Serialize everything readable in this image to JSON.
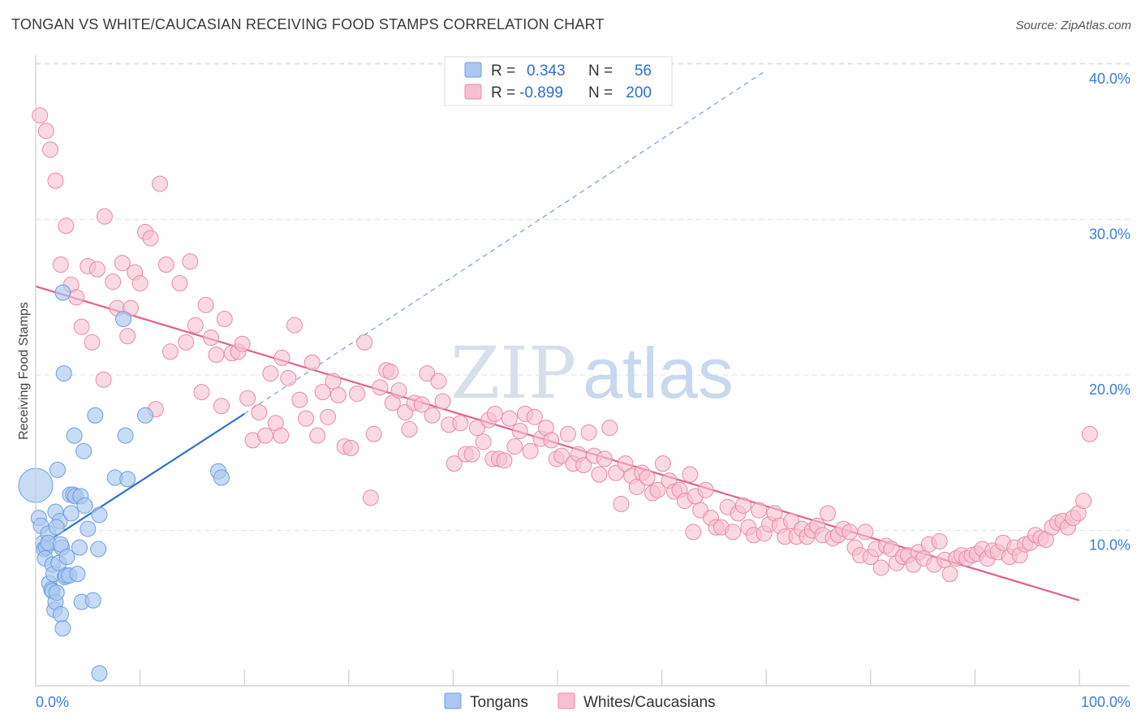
{
  "header": {
    "title": "TONGAN VS WHITE/CAUCASIAN RECEIVING FOOD STAMPS CORRELATION CHART",
    "source": "Source: ZipAtlas.com"
  },
  "legend_box": {
    "rows": [
      {
        "r_label": "R =",
        "r_value": "0.343",
        "n_label": "N =",
        "n_value": "56",
        "color": "#aac8f0"
      },
      {
        "r_label": "R =",
        "r_value": "-0.899",
        "n_label": "N =",
        "n_value": "200",
        "color": "#f5b8cb"
      }
    ]
  },
  "watermark": {
    "zip": "ZIP",
    "atlas": "atlas"
  },
  "colors": {
    "blue_fill": "#aac8f0",
    "blue_stroke": "#6d9fe0",
    "blue_line": "#2e72d2",
    "pink_fill": "#f7c0d0",
    "pink_stroke": "#e98aa8",
    "pink_line": "#e0608c",
    "grid": "#dde3ea",
    "tick_text": "#3b7dd8"
  },
  "chart_data": {
    "type": "scatter",
    "title": "TONGAN VS WHITE/CAUCASIAN RECEIVING FOOD STAMPS CORRELATION CHART",
    "ylabel": "Receiving Food Stamps",
    "xlabel": "",
    "xlim": [
      0,
      100
    ],
    "ylim": [
      0,
      40
    ],
    "x_tick_labels": [
      "0.0%",
      "100.0%"
    ],
    "y_tick_labels": [
      "10.0%",
      "20.0%",
      "30.0%",
      "40.0%"
    ],
    "y_ticks": [
      10,
      20,
      30,
      40
    ],
    "grid": true,
    "legend_position": "bottom",
    "series": [
      {
        "name": "Tongans",
        "r": 0.343,
        "n": 56,
        "trend": {
          "x0": 0,
          "y0": 8.8,
          "x1": 20,
          "y1": 17.5,
          "dashed_to_x": 70,
          "dashed_to_y": 39.6
        },
        "points": [
          [
            0,
            12.9
          ],
          [
            0.3,
            10.8
          ],
          [
            0.5,
            10.3
          ],
          [
            0.7,
            9.2
          ],
          [
            0.8,
            8.8
          ],
          [
            1.0,
            8.9
          ],
          [
            0.9,
            8.2
          ],
          [
            1.2,
            9.8
          ],
          [
            1.2,
            9.2
          ],
          [
            1.3,
            6.6
          ],
          [
            1.5,
            6.2
          ],
          [
            1.6,
            7.8
          ],
          [
            1.6,
            6.1
          ],
          [
            1.8,
            4.9
          ],
          [
            1.7,
            7.2
          ],
          [
            1.9,
            11.2
          ],
          [
            1.9,
            5.4
          ],
          [
            2.0,
            6.0
          ],
          [
            2.1,
            13.9
          ],
          [
            2.2,
            7.9
          ],
          [
            2.3,
            10.6
          ],
          [
            2.4,
            4.6
          ],
          [
            2.5,
            8.9
          ],
          [
            2.4,
            9.1
          ],
          [
            2.6,
            3.7
          ],
          [
            2.6,
            25.3
          ],
          [
            2.7,
            20.1
          ],
          [
            2.8,
            7.0
          ],
          [
            2.9,
            7.1
          ],
          [
            3.0,
            8.3
          ],
          [
            3.2,
            7.1
          ],
          [
            3.3,
            12.3
          ],
          [
            3.4,
            11.1
          ],
          [
            3.6,
            12.3
          ],
          [
            3.7,
            16.1
          ],
          [
            3.8,
            12.2
          ],
          [
            4.0,
            7.2
          ],
          [
            4.2,
            8.9
          ],
          [
            4.3,
            12.2
          ],
          [
            4.4,
            5.4
          ],
          [
            4.6,
            15.1
          ],
          [
            4.7,
            11.6
          ],
          [
            5.0,
            10.1
          ],
          [
            5.5,
            5.5
          ],
          [
            5.7,
            17.4
          ],
          [
            6.0,
            8.8
          ],
          [
            6.1,
            11.0
          ],
          [
            6.1,
            0.8
          ],
          [
            7.6,
            13.4
          ],
          [
            8.4,
            23.6
          ],
          [
            8.6,
            16.1
          ],
          [
            8.8,
            13.3
          ],
          [
            10.5,
            17.4
          ],
          [
            17.5,
            13.8
          ],
          [
            17.8,
            13.4
          ],
          [
            2.0,
            10.2
          ]
        ]
      },
      {
        "name": "Whites/Caucasians",
        "r": -0.899,
        "n": 200,
        "trend": {
          "x0": 0,
          "y0": 25.7,
          "x1": 100,
          "y1": 5.5
        },
        "points": [
          [
            0.4,
            36.7
          ],
          [
            1.0,
            35.7
          ],
          [
            1.4,
            34.5
          ],
          [
            1.9,
            32.5
          ],
          [
            2.4,
            27.1
          ],
          [
            2.9,
            29.6
          ],
          [
            3.4,
            25.8
          ],
          [
            3.9,
            25.0
          ],
          [
            4.4,
            23.1
          ],
          [
            5.0,
            27.0
          ],
          [
            5.4,
            22.1
          ],
          [
            5.9,
            26.8
          ],
          [
            6.5,
            19.7
          ],
          [
            6.6,
            30.2
          ],
          [
            7.4,
            26.0
          ],
          [
            7.8,
            24.3
          ],
          [
            8.3,
            27.2
          ],
          [
            8.8,
            22.5
          ],
          [
            9.1,
            24.3
          ],
          [
            9.5,
            26.6
          ],
          [
            10.0,
            25.9
          ],
          [
            10.5,
            29.2
          ],
          [
            11.0,
            28.8
          ],
          [
            11.5,
            17.8
          ],
          [
            11.9,
            32.3
          ],
          [
            12.9,
            21.5
          ],
          [
            12.5,
            27.1
          ],
          [
            13.8,
            25.9
          ],
          [
            14.4,
            22.1
          ],
          [
            14.8,
            27.3
          ],
          [
            15.3,
            23.2
          ],
          [
            15.9,
            18.9
          ],
          [
            16.3,
            24.5
          ],
          [
            16.8,
            22.4
          ],
          [
            17.3,
            21.3
          ],
          [
            17.8,
            18.0
          ],
          [
            18.1,
            23.6
          ],
          [
            18.8,
            21.4
          ],
          [
            19.4,
            21.5
          ],
          [
            19.8,
            22.0
          ],
          [
            20.3,
            18.5
          ],
          [
            20.8,
            15.8
          ],
          [
            21.4,
            17.6
          ],
          [
            22.0,
            16.1
          ],
          [
            22.5,
            20.1
          ],
          [
            23.0,
            16.9
          ],
          [
            23.6,
            21.1
          ],
          [
            24.2,
            19.8
          ],
          [
            24.8,
            23.2
          ],
          [
            25.3,
            18.4
          ],
          [
            25.9,
            17.2
          ],
          [
            26.5,
            20.8
          ],
          [
            27.0,
            16.1
          ],
          [
            27.5,
            18.9
          ],
          [
            28.0,
            17.3
          ],
          [
            28.5,
            19.6
          ],
          [
            29.0,
            18.7
          ],
          [
            29.6,
            15.4
          ],
          [
            30.2,
            15.3
          ],
          [
            30.8,
            18.8
          ],
          [
            31.5,
            22.1
          ],
          [
            32.1,
            12.1
          ],
          [
            32.4,
            16.2
          ],
          [
            33.0,
            19.2
          ],
          [
            33.6,
            20.3
          ],
          [
            34.2,
            18.2
          ],
          [
            34.8,
            19.0
          ],
          [
            35.4,
            17.6
          ],
          [
            35.8,
            16.5
          ],
          [
            36.3,
            18.2
          ],
          [
            37.0,
            18.1
          ],
          [
            37.5,
            20.1
          ],
          [
            38.0,
            17.4
          ],
          [
            38.6,
            19.6
          ],
          [
            39.0,
            18.3
          ],
          [
            39.6,
            16.8
          ],
          [
            40.1,
            14.3
          ],
          [
            40.7,
            16.9
          ],
          [
            41.2,
            14.9
          ],
          [
            41.8,
            14.9
          ],
          [
            42.3,
            16.6
          ],
          [
            42.9,
            15.7
          ],
          [
            43.4,
            17.1
          ],
          [
            43.8,
            14.6
          ],
          [
            44.4,
            14.6
          ],
          [
            44.9,
            14.5
          ],
          [
            45.4,
            17.2
          ],
          [
            45.9,
            15.4
          ],
          [
            46.4,
            16.4
          ],
          [
            46.9,
            17.5
          ],
          [
            47.4,
            15.1
          ],
          [
            47.8,
            17.3
          ],
          [
            48.4,
            15.9
          ],
          [
            48.9,
            16.6
          ],
          [
            49.4,
            15.8
          ],
          [
            49.9,
            14.6
          ],
          [
            50.4,
            14.8
          ],
          [
            51.0,
            16.2
          ],
          [
            51.5,
            14.3
          ],
          [
            52.0,
            14.9
          ],
          [
            52.5,
            14.2
          ],
          [
            53.0,
            16.3
          ],
          [
            53.5,
            14.8
          ],
          [
            54.0,
            13.6
          ],
          [
            54.5,
            14.6
          ],
          [
            55.0,
            16.6
          ],
          [
            55.6,
            13.7
          ],
          [
            56.1,
            11.7
          ],
          [
            56.5,
            14.3
          ],
          [
            57.1,
            13.5
          ],
          [
            57.6,
            12.8
          ],
          [
            58.1,
            13.7
          ],
          [
            58.6,
            13.4
          ],
          [
            59.1,
            12.4
          ],
          [
            59.6,
            12.6
          ],
          [
            60.1,
            14.3
          ],
          [
            60.7,
            13.2
          ],
          [
            61.2,
            12.5
          ],
          [
            61.7,
            12.6
          ],
          [
            62.2,
            11.9
          ],
          [
            62.7,
            13.6
          ],
          [
            63.2,
            12.2
          ],
          [
            63.7,
            11.3
          ],
          [
            64.2,
            12.6
          ],
          [
            64.7,
            10.8
          ],
          [
            65.2,
            10.2
          ],
          [
            65.7,
            10.2
          ],
          [
            66.3,
            11.5
          ],
          [
            66.8,
            9.9
          ],
          [
            67.3,
            11.1
          ],
          [
            67.8,
            11.6
          ],
          [
            68.3,
            10.2
          ],
          [
            68.8,
            9.7
          ],
          [
            69.3,
            11.3
          ],
          [
            69.8,
            9.8
          ],
          [
            70.3,
            10.4
          ],
          [
            70.8,
            11.1
          ],
          [
            71.3,
            10.3
          ],
          [
            71.8,
            9.6
          ],
          [
            72.4,
            10.6
          ],
          [
            72.9,
            9.6
          ],
          [
            73.4,
            10.1
          ],
          [
            73.9,
            9.6
          ],
          [
            74.4,
            10.0
          ],
          [
            74.9,
            10.3
          ],
          [
            75.4,
            9.7
          ],
          [
            75.9,
            11.1
          ],
          [
            76.4,
            9.5
          ],
          [
            76.9,
            9.7
          ],
          [
            77.4,
            10.1
          ],
          [
            78.0,
            9.9
          ],
          [
            78.5,
            8.9
          ],
          [
            79.0,
            8.4
          ],
          [
            79.5,
            9.9
          ],
          [
            80.0,
            8.3
          ],
          [
            80.5,
            8.8
          ],
          [
            81.0,
            7.6
          ],
          [
            81.5,
            9.0
          ],
          [
            82.0,
            8.8
          ],
          [
            82.5,
            7.9
          ],
          [
            83.1,
            8.3
          ],
          [
            83.6,
            8.4
          ],
          [
            84.1,
            7.8
          ],
          [
            84.6,
            8.6
          ],
          [
            85.1,
            8.2
          ],
          [
            85.6,
            9.1
          ],
          [
            86.1,
            7.8
          ],
          [
            86.6,
            9.3
          ],
          [
            87.1,
            8.1
          ],
          [
            87.6,
            7.2
          ],
          [
            88.2,
            8.2
          ],
          [
            88.7,
            8.4
          ],
          [
            89.2,
            8.2
          ],
          [
            89.7,
            8.4
          ],
          [
            90.2,
            8.5
          ],
          [
            90.7,
            8.8
          ],
          [
            91.2,
            8.2
          ],
          [
            91.7,
            8.7
          ],
          [
            92.2,
            8.6
          ],
          [
            92.7,
            9.2
          ],
          [
            93.3,
            8.3
          ],
          [
            93.8,
            8.9
          ],
          [
            94.3,
            8.4
          ],
          [
            94.8,
            9.1
          ],
          [
            95.3,
            9.2
          ],
          [
            95.8,
            9.7
          ],
          [
            96.3,
            9.5
          ],
          [
            96.8,
            9.4
          ],
          [
            97.4,
            10.2
          ],
          [
            97.9,
            10.5
          ],
          [
            98.4,
            10.6
          ],
          [
            98.9,
            10.2
          ],
          [
            99.4,
            10.8
          ],
          [
            99.9,
            11.1
          ],
          [
            100.4,
            11.9
          ],
          [
            101.0,
            16.2
          ],
          [
            34.0,
            20.2
          ],
          [
            23.5,
            16.1
          ],
          [
            63.0,
            9.9
          ],
          [
            44.0,
            17.5
          ]
        ]
      }
    ]
  }
}
